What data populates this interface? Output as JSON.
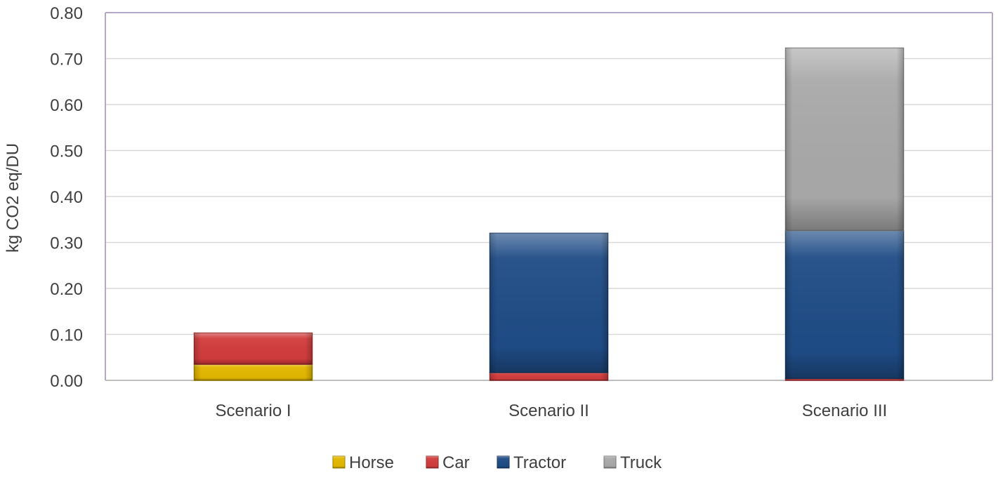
{
  "chart_data": {
    "type": "bar",
    "stacked": true,
    "categories": [
      "Scenario I",
      "Scenario II",
      "Scenario III"
    ],
    "series": [
      {
        "name": "Horse",
        "values": [
          0.035,
          0.0,
          0.0
        ],
        "color": "#e3b800"
      },
      {
        "name": "Car",
        "values": [
          0.068,
          0.017,
          0.004
        ],
        "color": "#d23c3c"
      },
      {
        "name": "Tractor",
        "values": [
          0.0,
          0.303,
          0.322
        ],
        "color": "#1f4c86"
      },
      {
        "name": "Truck",
        "values": [
          0.0,
          0.0,
          0.397
        ],
        "color": "#a9a9a9"
      }
    ],
    "title": "",
    "xlabel": "",
    "ylabel": "kg CO2 eq/DU",
    "ylim": [
      0,
      0.8
    ],
    "yticks": [
      "0.00",
      "0.10",
      "0.20",
      "0.30",
      "0.40",
      "0.50",
      "0.60",
      "0.70",
      "0.80"
    ],
    "grid": true,
    "legend_position": "bottom"
  }
}
